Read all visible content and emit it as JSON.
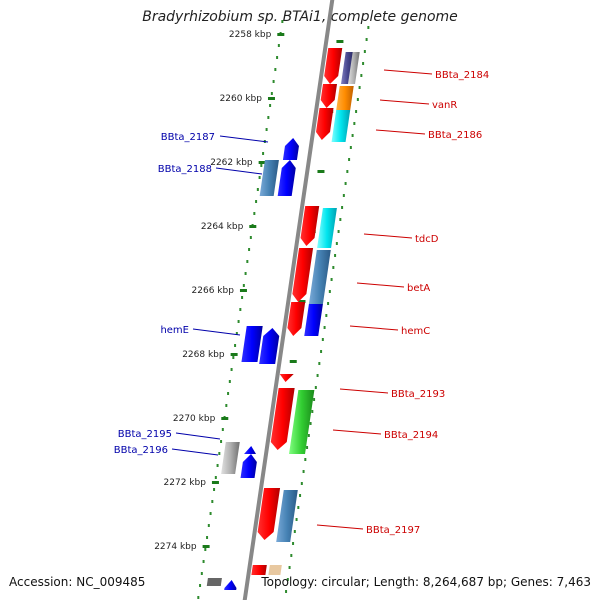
{
  "title": "Bradyrhizobium sp. BTAi1, complete genome",
  "footer": {
    "accession": "Accession: NC_009485",
    "summary": "Topology: circular; Length: 8,264,687 bp; Genes: 7,463"
  },
  "scale_ticks": [
    "2258 kbp",
    "2260 kbp",
    "2262 kbp",
    "2264 kbp",
    "2266 kbp",
    "2268 kbp",
    "2270 kbp",
    "2272 kbp",
    "2274 kbp"
  ],
  "colors": {
    "forward": "#ff0000",
    "reverse": "#0000ff",
    "backbone": "#888888",
    "dots": "#2e8b2e"
  },
  "genes_right": [
    {
      "label": "BBta_2184",
      "color": "#cc0000"
    },
    {
      "label": "vanR",
      "color": "#cc0000"
    },
    {
      "label": "BBta_2186",
      "color": "#cc0000"
    },
    {
      "label": "tdcD",
      "color": "#cc0000"
    },
    {
      "label": "betA",
      "color": "#cc0000"
    },
    {
      "label": "hemC",
      "color": "#cc0000"
    },
    {
      "label": "BBta_2193",
      "color": "#cc0000"
    },
    {
      "label": "BBta_2194",
      "color": "#cc0000"
    },
    {
      "label": "BBta_2197",
      "color": "#cc0000"
    }
  ],
  "genes_left": [
    {
      "label": "BBta_2187",
      "color": "#0000aa"
    },
    {
      "label": "BBta_2188",
      "color": "#0000aa"
    },
    {
      "label": "hemE",
      "color": "#0000aa"
    },
    {
      "label": "BBta_2195",
      "color": "#0000aa"
    },
    {
      "label": "BBta_2196",
      "color": "#0000aa"
    }
  ]
}
